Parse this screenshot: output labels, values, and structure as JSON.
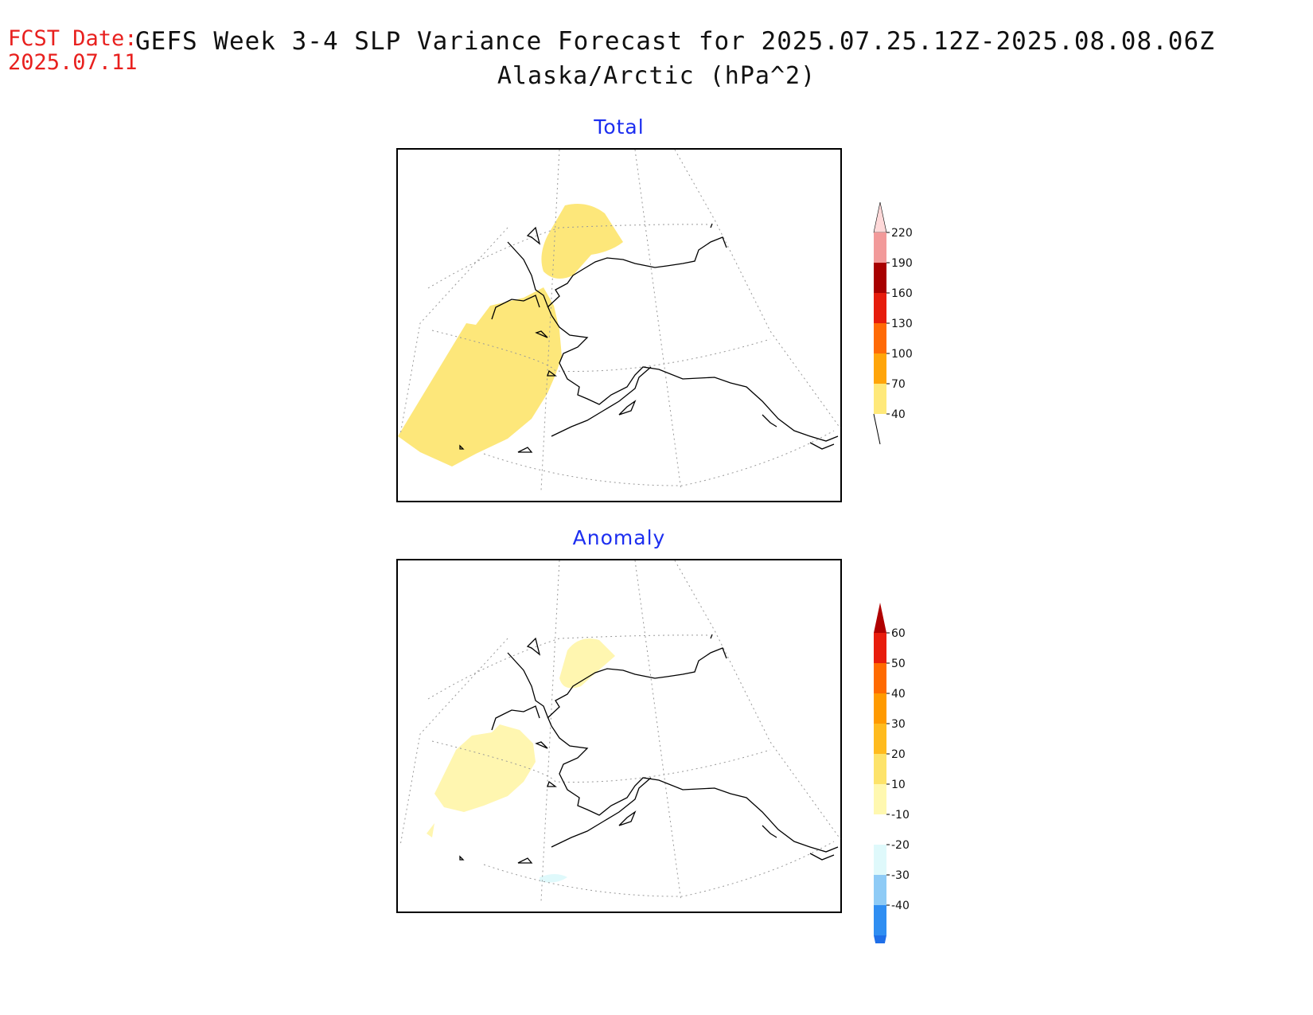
{
  "header": {
    "fcst_label": "FCST Date:",
    "fcst_date": "2025.07.11",
    "title": "GEFS Week 3-4 SLP Variance Forecast for 2025.07.25.12Z-2025.08.08.06Z",
    "subtitle": "Alaska/Arctic (hPa^2)"
  },
  "panels": [
    {
      "title": "Total",
      "colorbar": {
        "labels": [
          "40",
          "70",
          "100",
          "130",
          "160",
          "190",
          "220"
        ],
        "colors": [
          "#ffe97a",
          "#ffa50a",
          "#ff6a06",
          "#e61c0c",
          "#a80000",
          "#f29a9a",
          "#ffd9d9"
        ]
      }
    },
    {
      "title": "Anomaly",
      "colorbar": {
        "labels": [
          "-40",
          "-30",
          "-20",
          "-10",
          "10",
          "20",
          "30",
          "40",
          "50",
          "60"
        ],
        "colors": [
          "#1f6fe8",
          "#2f8ef2",
          "#8ecbf6",
          "#dff9fb",
          "#ffffff",
          "#fff8b0",
          "#fde36a",
          "#ffbb1e",
          "#ff9a00",
          "#ff6a00",
          "#e81c0c",
          "#b00000"
        ]
      }
    }
  ]
}
